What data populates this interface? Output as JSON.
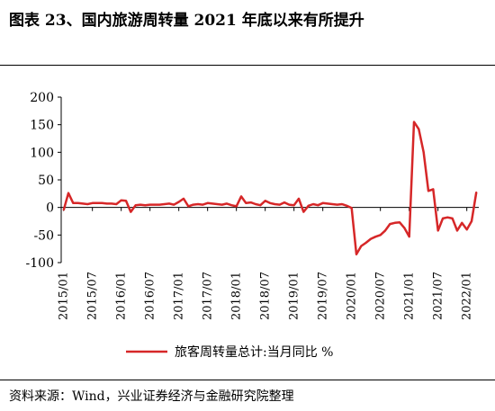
{
  "title": "图表 23、国内旅游周转量 2021 年底以来有所提升",
  "source": "资料来源：Wind，兴业证券经济与金融研究院整理",
  "chart_data": {
    "type": "line",
    "ylim": [
      -100,
      200
    ],
    "yticks": [
      200,
      150,
      100,
      50,
      0,
      -50,
      -100
    ],
    "xticks": [
      "2015/01",
      "2015/07",
      "2016/01",
      "2016/07",
      "2017/01",
      "2017/07",
      "2018/01",
      "2018/07",
      "2019/01",
      "2019/07",
      "2020/01",
      "2020/07",
      "2021/01",
      "2021/07",
      "2022/01"
    ],
    "legend_position": "bottom",
    "grid": false,
    "series": [
      {
        "name": "旅客周转量总计:当月同比 %",
        "color": "#d62728",
        "x": [
          "2015/01",
          "2015/02",
          "2015/03",
          "2015/04",
          "2015/05",
          "2015/06",
          "2015/07",
          "2015/08",
          "2015/09",
          "2015/10",
          "2015/11",
          "2015/12",
          "2016/01",
          "2016/02",
          "2016/03",
          "2016/04",
          "2016/05",
          "2016/06",
          "2016/07",
          "2016/08",
          "2016/09",
          "2016/10",
          "2016/11",
          "2016/12",
          "2017/01",
          "2017/02",
          "2017/03",
          "2017/04",
          "2017/05",
          "2017/06",
          "2017/07",
          "2017/08",
          "2017/09",
          "2017/10",
          "2017/11",
          "2017/12",
          "2018/01",
          "2018/02",
          "2018/03",
          "2018/04",
          "2018/05",
          "2018/06",
          "2018/07",
          "2018/08",
          "2018/09",
          "2018/10",
          "2018/11",
          "2018/12",
          "2019/01",
          "2019/02",
          "2019/03",
          "2019/04",
          "2019/05",
          "2019/06",
          "2019/07",
          "2019/08",
          "2019/09",
          "2019/10",
          "2019/11",
          "2019/12",
          "2020/01",
          "2020/02",
          "2020/03",
          "2020/04",
          "2020/05",
          "2020/06",
          "2020/07",
          "2020/08",
          "2020/09",
          "2020/10",
          "2020/11",
          "2020/12",
          "2021/01",
          "2021/02",
          "2021/03",
          "2021/04",
          "2021/05",
          "2021/06",
          "2021/07",
          "2021/08",
          "2021/09",
          "2021/10",
          "2021/11",
          "2021/12",
          "2022/01",
          "2022/02",
          "2022/03"
        ],
        "values": [
          -5,
          26,
          8,
          8,
          7,
          6,
          8,
          8,
          8,
          7,
          7,
          6,
          13,
          12,
          -8,
          4,
          5,
          4,
          5,
          5,
          5,
          6,
          7,
          5,
          10,
          16,
          2,
          5,
          6,
          5,
          8,
          7,
          6,
          5,
          7,
          4,
          2,
          20,
          8,
          9,
          6,
          4,
          12,
          8,
          6,
          5,
          9,
          5,
          4,
          16,
          -8,
          3,
          6,
          4,
          8,
          7,
          6,
          5,
          6,
          3,
          -1,
          -85,
          -70,
          -64,
          -57,
          -53,
          -50,
          -42,
          -30,
          -28,
          -27,
          -37,
          -53,
          155,
          142,
          100,
          30,
          33,
          -42,
          -20,
          -18,
          -20,
          -42,
          -28,
          -40,
          -25,
          28
        ]
      }
    ]
  }
}
